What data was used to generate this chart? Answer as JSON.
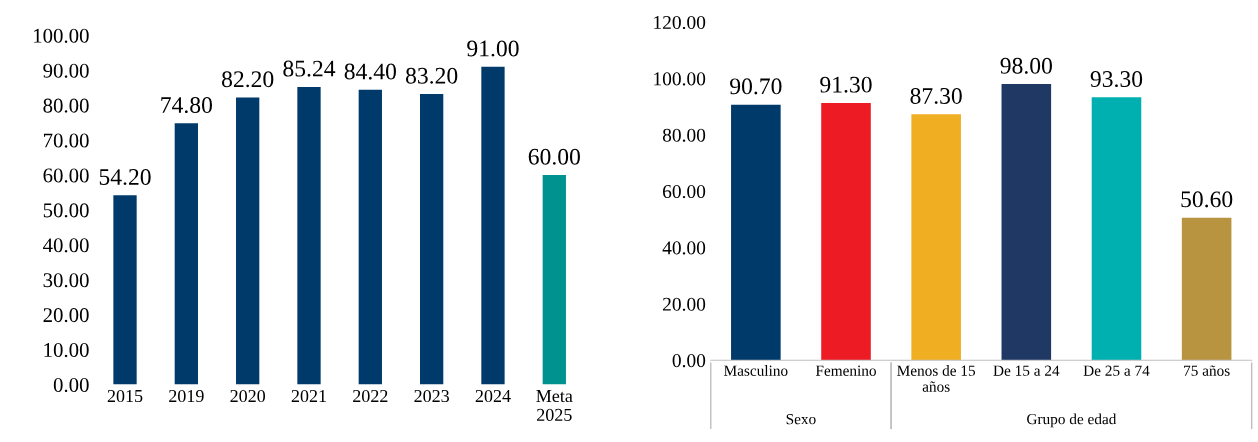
{
  "chart_data": [
    {
      "type": "bar",
      "categories": [
        "2015",
        "2019",
        "2020",
        "2021",
        "2022",
        "2023",
        "2024",
        "Meta\n2025"
      ],
      "values": [
        54.2,
        74.8,
        82.2,
        85.24,
        84.4,
        83.2,
        91.0,
        60.0
      ],
      "colors": [
        "#003a6b",
        "#003a6b",
        "#003a6b",
        "#003a6b",
        "#003a6b",
        "#003a6b",
        "#003a6b",
        "#00928f"
      ],
      "value_labels": [
        "54.20",
        "74.80",
        "82.20",
        "85.24",
        "84.40",
        "83.20",
        "91.00",
        "60.00"
      ],
      "ylim": [
        0,
        100
      ],
      "yticks": [
        {
          "value": 0,
          "label": "0.00"
        },
        {
          "value": 10,
          "label": "10.00"
        },
        {
          "value": 20,
          "label": "20.00"
        },
        {
          "value": 30,
          "label": "30.00"
        },
        {
          "value": 40,
          "label": "40.00"
        },
        {
          "value": 50,
          "label": "50.00"
        },
        {
          "value": 60,
          "label": "60.00"
        },
        {
          "value": 70,
          "label": "70.00"
        },
        {
          "value": 80,
          "label": "80.00"
        },
        {
          "value": 90,
          "label": "90.00"
        },
        {
          "value": 100,
          "label": "100.00"
        }
      ],
      "grid": false
    },
    {
      "type": "bar",
      "categories": [
        "Masculino",
        "Femenino",
        "Menos de 15\naños",
        "De 15 a 24",
        "De 25 a 74",
        "75 años"
      ],
      "values": [
        90.7,
        91.3,
        87.3,
        98.0,
        93.3,
        50.6
      ],
      "colors": [
        "#003a6b",
        "#ed1c24",
        "#f0ae22",
        "#1f3864",
        "#00b0b0",
        "#b89440"
      ],
      "value_labels": [
        "90.70",
        "91.30",
        "87.30",
        "98.00",
        "93.30",
        "50.60"
      ],
      "ylim": [
        0,
        120
      ],
      "yticks": [
        {
          "value": 0,
          "label": "0.00"
        },
        {
          "value": 20,
          "label": "20.00"
        },
        {
          "value": 40,
          "label": "40.00"
        },
        {
          "value": 60,
          "label": "60.00"
        },
        {
          "value": 80,
          "label": "80.00"
        },
        {
          "value": 100,
          "label": "100.00"
        },
        {
          "value": 120,
          "label": "120.00"
        }
      ],
      "grid": false,
      "annotations": [
        "Sexo",
        "Grupo de edad"
      ]
    }
  ]
}
